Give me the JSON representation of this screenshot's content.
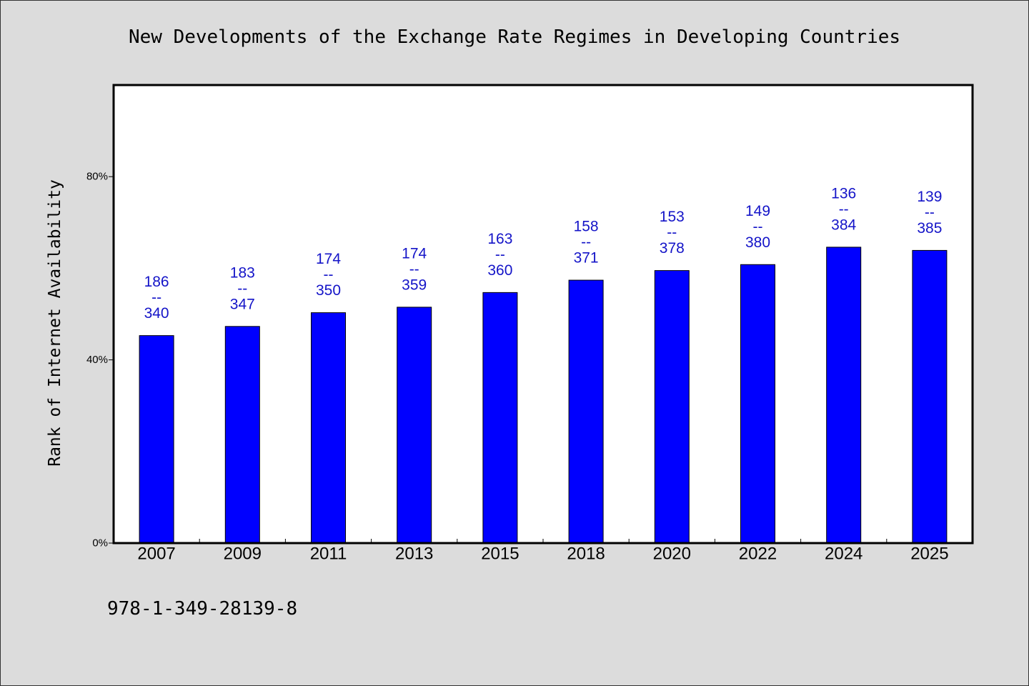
{
  "chart_data": {
    "type": "bar",
    "title": "New Developments of the Exchange Rate Regimes in Developing Countries",
    "ylabel": "Rank of Internet Availability",
    "categories": [
      "2007",
      "2009",
      "2011",
      "2013",
      "2015",
      "2018",
      "2020",
      "2022",
      "2024",
      "2025"
    ],
    "values": [
      45.3,
      47.3,
      50.3,
      51.5,
      54.7,
      57.4,
      59.5,
      60.8,
      64.6,
      63.9
    ],
    "ylim": [
      0,
      100
    ],
    "yticks": [
      {
        "value": 0,
        "label": "0%"
      },
      {
        "value": 40,
        "label": "40%"
      },
      {
        "value": 80,
        "label": "80%"
      }
    ],
    "data_labels": [
      [
        "186",
        "--",
        "340"
      ],
      [
        "183",
        "--",
        "347"
      ],
      [
        "174",
        "--",
        "350"
      ],
      [
        "174",
        "--",
        "359"
      ],
      [
        "163",
        "--",
        "360"
      ],
      [
        "158",
        "--",
        "371"
      ],
      [
        "153",
        "--",
        "378"
      ],
      [
        "149",
        "--",
        "380"
      ],
      [
        "136",
        "--",
        "384"
      ],
      [
        "139",
        "--",
        "385"
      ]
    ],
    "grid": false,
    "colors": {
      "background": "#dcdcdc",
      "plot_background": "#ffffff",
      "bar": "#0000ff",
      "bar_edge": "#000000",
      "data_label": "#1414c8"
    }
  },
  "footnote": "978-1-349-28139-8"
}
